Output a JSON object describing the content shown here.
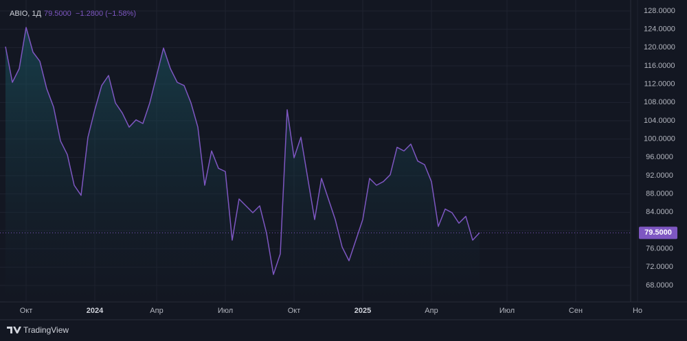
{
  "chart_data": {
    "type": "area",
    "title": "ABIO, 1Д",
    "price_label": "79.5000",
    "change_label": "−1.2800 (−1.58%)",
    "brand": "TradingView",
    "categories": [
      null,
      null,
      null,
      "Окт",
      null,
      null,
      null,
      null,
      null,
      null,
      null,
      null,
      null,
      "2024",
      null,
      null,
      null,
      null,
      null,
      null,
      null,
      null,
      "Апр",
      null,
      null,
      null,
      null,
      null,
      null,
      null,
      null,
      null,
      "Июл",
      null,
      null,
      null,
      null,
      null,
      null,
      null,
      null,
      null,
      "Окт",
      null,
      null,
      null,
      null,
      null,
      null,
      null,
      null,
      null,
      "2025",
      null,
      null,
      null,
      null,
      null,
      null,
      null,
      null,
      null,
      "Апр",
      null,
      null,
      null,
      null,
      null,
      null,
      null,
      null,
      null,
      null,
      "Июл",
      null,
      null,
      null,
      null,
      null,
      null,
      null,
      null,
      null,
      "Сен",
      null,
      null,
      null,
      null,
      null,
      null,
      null,
      null,
      "Но"
    ],
    "series": [
      {
        "color": "#7e57c2",
        "values": [
          120.2,
          112.4,
          115.4,
          124.4,
          119,
          117,
          111,
          107,
          99.6,
          96.6,
          89.9,
          87.7,
          100.4,
          106.4,
          111.7,
          113.9,
          107.9,
          105.7,
          102.6,
          104.2,
          103.4,
          107.9,
          113.9,
          119.9,
          115.4,
          112.4,
          111.7,
          107.9,
          102.6,
          89.9,
          97.4,
          93.6,
          92.9,
          77.9,
          86.9,
          85.4,
          83.9,
          85.4,
          79.4,
          70.4,
          74.9,
          106.4,
          95.9,
          100.4,
          91.4,
          82.4,
          91.4,
          86.9,
          82.4,
          76.4,
          73.4,
          77.9,
          82.4,
          91.4,
          89.9,
          90.7,
          92.2,
          98.2,
          97.4,
          98.9,
          95.2,
          94.4,
          90.7,
          80.9,
          84.7,
          83.9,
          81.6,
          83.1,
          77.9,
          79.5,
          null,
          null,
          null,
          null,
          null,
          null,
          null,
          null,
          null,
          null,
          null,
          null,
          null,
          null,
          null,
          null,
          null,
          null,
          null,
          null,
          null,
          null,
          null
        ]
      }
    ],
    "ylim": [
      64.4,
      130.4
    ],
    "yticks": [
      {
        "value": 68,
        "label": "68.0000"
      },
      {
        "value": 72,
        "label": "72.0000"
      },
      {
        "value": 76,
        "label": "76.0000"
      },
      {
        "value": 80,
        "label": "80.0000"
      },
      {
        "value": 84,
        "label": "84.0000"
      },
      {
        "value": 88,
        "label": "88.0000"
      },
      {
        "value": 92,
        "label": "92.0000"
      },
      {
        "value": 96,
        "label": "96.0000"
      },
      {
        "value": 100,
        "label": "100.0000"
      },
      {
        "value": 104,
        "label": "104.0000"
      },
      {
        "value": 108,
        "label": "108.0000"
      },
      {
        "value": 112,
        "label": "112.0000"
      },
      {
        "value": 116,
        "label": "116.0000"
      },
      {
        "value": 120,
        "label": "120.0000"
      },
      {
        "value": 124,
        "label": "124.0000"
      },
      {
        "value": 128,
        "label": "128.0000"
      }
    ],
    "grid": true
  }
}
